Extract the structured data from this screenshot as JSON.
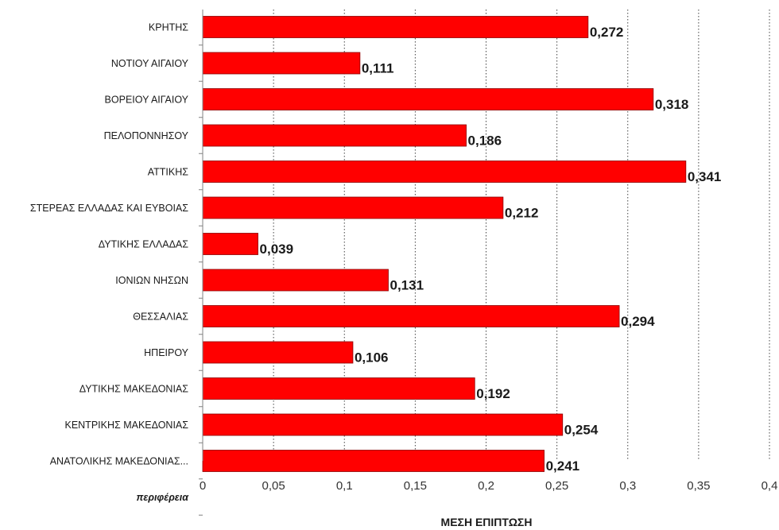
{
  "chart_data": {
    "type": "bar",
    "orientation": "horizontal",
    "categories": [
      "ΚΡΗΤΗΣ",
      "ΝΟΤΙΟΥ ΑΙΓΑΙΟΥ",
      "ΒΟΡΕΙΟΥ ΑΙΓΑΙΟΥ",
      "ΠΕΛΟΠΟΝΝΗΣΟΥ",
      "ΑΤΤΙΚΗΣ",
      "ΣΤΕΡΕΑΣ ΕΛΛΑΔΑΣ ΚΑΙ ΕΥΒΟΙΑΣ",
      "ΔΥΤΙΚΗΣ ΕΛΛΑΔΑΣ",
      "ΙΟΝΙΩΝ ΝΗΣΩΝ",
      "ΘΕΣΣΑΛΙΑΣ",
      "ΗΠΕΙΡΟΥ",
      "ΔΥΤΙΚΗΣ ΜΑΚΕΔΟΝΙΑΣ",
      "ΚΕΝΤΡΙΚΗΣ ΜΑΚΕΔΟΝΙΑΣ",
      "ΑΝΑΤΟΛΙΚΗΣ ΜΑΚΕΔΟΝΙΑΣ...",
      "περιφέρεια"
    ],
    "values": [
      0.272,
      0.111,
      0.318,
      0.186,
      0.341,
      0.212,
      0.039,
      0.131,
      0.294,
      0.106,
      0.192,
      0.254,
      0.241,
      null
    ],
    "value_labels": [
      "0,272",
      "0,111",
      "0,318",
      "0,186",
      "0,341",
      "0,212",
      "0,039",
      "0,131",
      "0,294",
      "0,106",
      "0,192",
      "0,254",
      "0,241",
      ""
    ],
    "xlabel": "ΜΕΣΗ ΕΠΙΠΤΩΣΗ",
    "ylabel": "",
    "title": "",
    "xlim": [
      0,
      0.4
    ],
    "x_ticks": [
      0,
      0.05,
      0.1,
      0.15,
      0.2,
      0.25,
      0.3,
      0.35,
      0.4
    ],
    "x_tick_labels": [
      "0",
      "0,05",
      "0,1",
      "0,15",
      "0,2",
      "0,25",
      "0,3",
      "0,35",
      "0,4"
    ],
    "grid": "vertical-dotted",
    "legend": "none",
    "colors": {
      "bar": "#ff0000",
      "bar_edge": "#8b0000",
      "grid": "#444444",
      "axis": "#808080"
    }
  }
}
